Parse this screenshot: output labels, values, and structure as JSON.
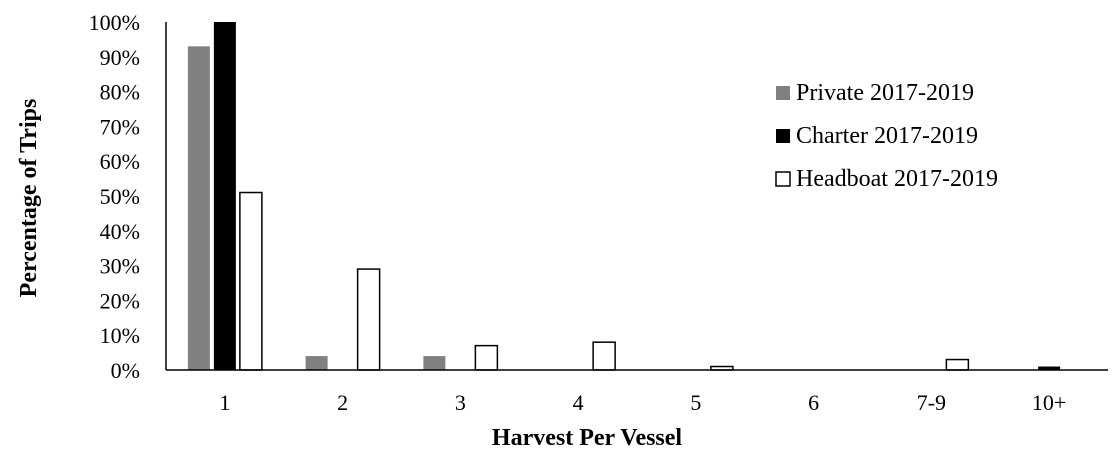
{
  "chart_data": {
    "type": "bar",
    "title": "",
    "xlabel": "Harvest Per Vessel",
    "ylabel": "Percentage of Trips",
    "categories": [
      "1",
      "2",
      "3",
      "4",
      "5",
      "6",
      "7-9",
      "10+"
    ],
    "y_tick_labels": [
      "0%",
      "10%",
      "20%",
      "30%",
      "40%",
      "50%",
      "60%",
      "70%",
      "80%",
      "90%",
      "100%"
    ],
    "ylim": [
      0,
      100
    ],
    "grid": false,
    "legend_position": "top-right",
    "series": [
      {
        "name": "Private 2017-2019",
        "color": "#808080",
        "fill": "#808080",
        "values": [
          93,
          4,
          4,
          0,
          0,
          0,
          0,
          0
        ]
      },
      {
        "name": "Charter 2017-2019",
        "color": "#000000",
        "fill": "#000000",
        "values": [
          100,
          0,
          0,
          0,
          0,
          0,
          0,
          1
        ]
      },
      {
        "name": "Headboat 2017-2019",
        "color": "#000000",
        "fill": "#ffffff",
        "values": [
          51,
          29,
          7,
          8,
          1,
          0,
          3,
          0
        ]
      }
    ]
  }
}
